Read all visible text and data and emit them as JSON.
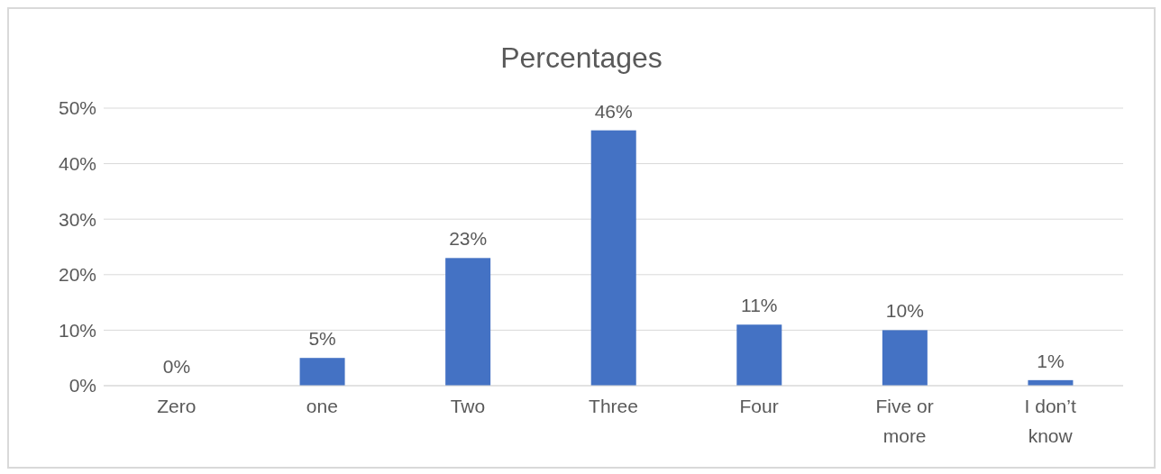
{
  "chart_data": {
    "type": "bar",
    "title": "Percentages",
    "categories": [
      "Zero",
      "one",
      "Two",
      "Three",
      "Four",
      "Five or more",
      "I don’t know"
    ],
    "values": [
      0,
      5,
      23,
      46,
      11,
      10,
      1
    ],
    "value_labels": [
      "0%",
      "5%",
      "23%",
      "46%",
      "11%",
      "10%",
      "1%"
    ],
    "color": "#4472c4",
    "ylim": [
      0,
      50
    ],
    "yticks": [
      {
        "value": 0,
        "label": "0%"
      },
      {
        "value": 10,
        "label": "10%"
      },
      {
        "value": 20,
        "label": "20%"
      },
      {
        "value": 30,
        "label": "30%"
      },
      {
        "value": 40,
        "label": "40%"
      },
      {
        "value": 50,
        "label": "50%"
      }
    ],
    "grid": "y",
    "legend": false
  }
}
